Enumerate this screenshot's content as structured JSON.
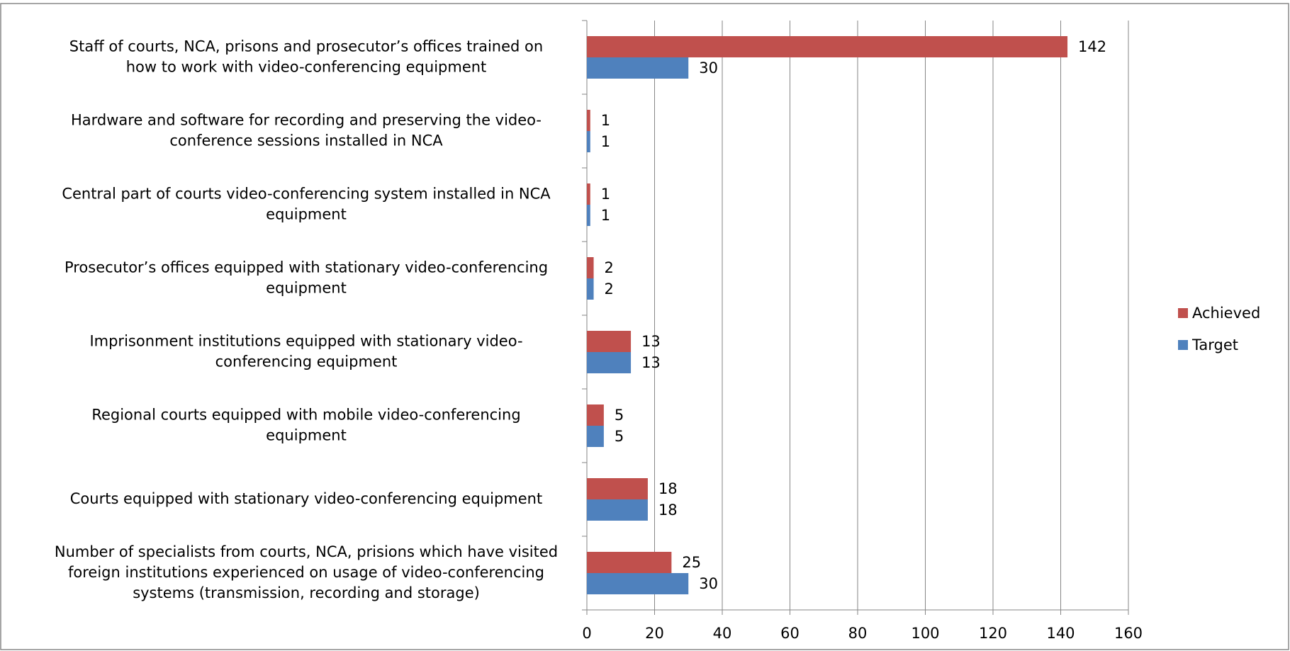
{
  "chart_data": {
    "type": "bar",
    "orientation": "horizontal",
    "categories": [
      "Staff of courts, NCA,  prisons and prosecutor’s offices trained on\nhow to work with video-conferencing equipment",
      "Hardware and software for recording and preserving the video-\nconference sessions installed in NCA",
      "Central part of courts video-conferencing system installed in NCA\nequipment",
      "Prosecutor’s offices equipped with stationary video-conferencing\nequipment",
      "Imprisonment institutions equipped with stationary video-\nconferencing equipment",
      "Regional  courts equipped with mobile video-conferencing\nequipment",
      "Courts equipped with stationary video-conferencing equipment",
      "Number of specialists from courts, NCA, prisions which have visited\nforeign institutions experienced on usage of video-conferencing\nsystems (transmission, recording and storage)"
    ],
    "series": [
      {
        "name": "Achieved",
        "color": "#c0504d",
        "values": [
          142,
          1,
          1,
          2,
          13,
          5,
          18,
          25
        ]
      },
      {
        "name": "Target",
        "color": "#4f81bd",
        "values": [
          30,
          1,
          1,
          2,
          13,
          5,
          18,
          30
        ]
      }
    ],
    "xlim": [
      0,
      160
    ],
    "xticks": [
      0,
      20,
      40,
      60,
      80,
      100,
      120,
      140,
      160
    ],
    "grid": true,
    "legend": "right"
  }
}
